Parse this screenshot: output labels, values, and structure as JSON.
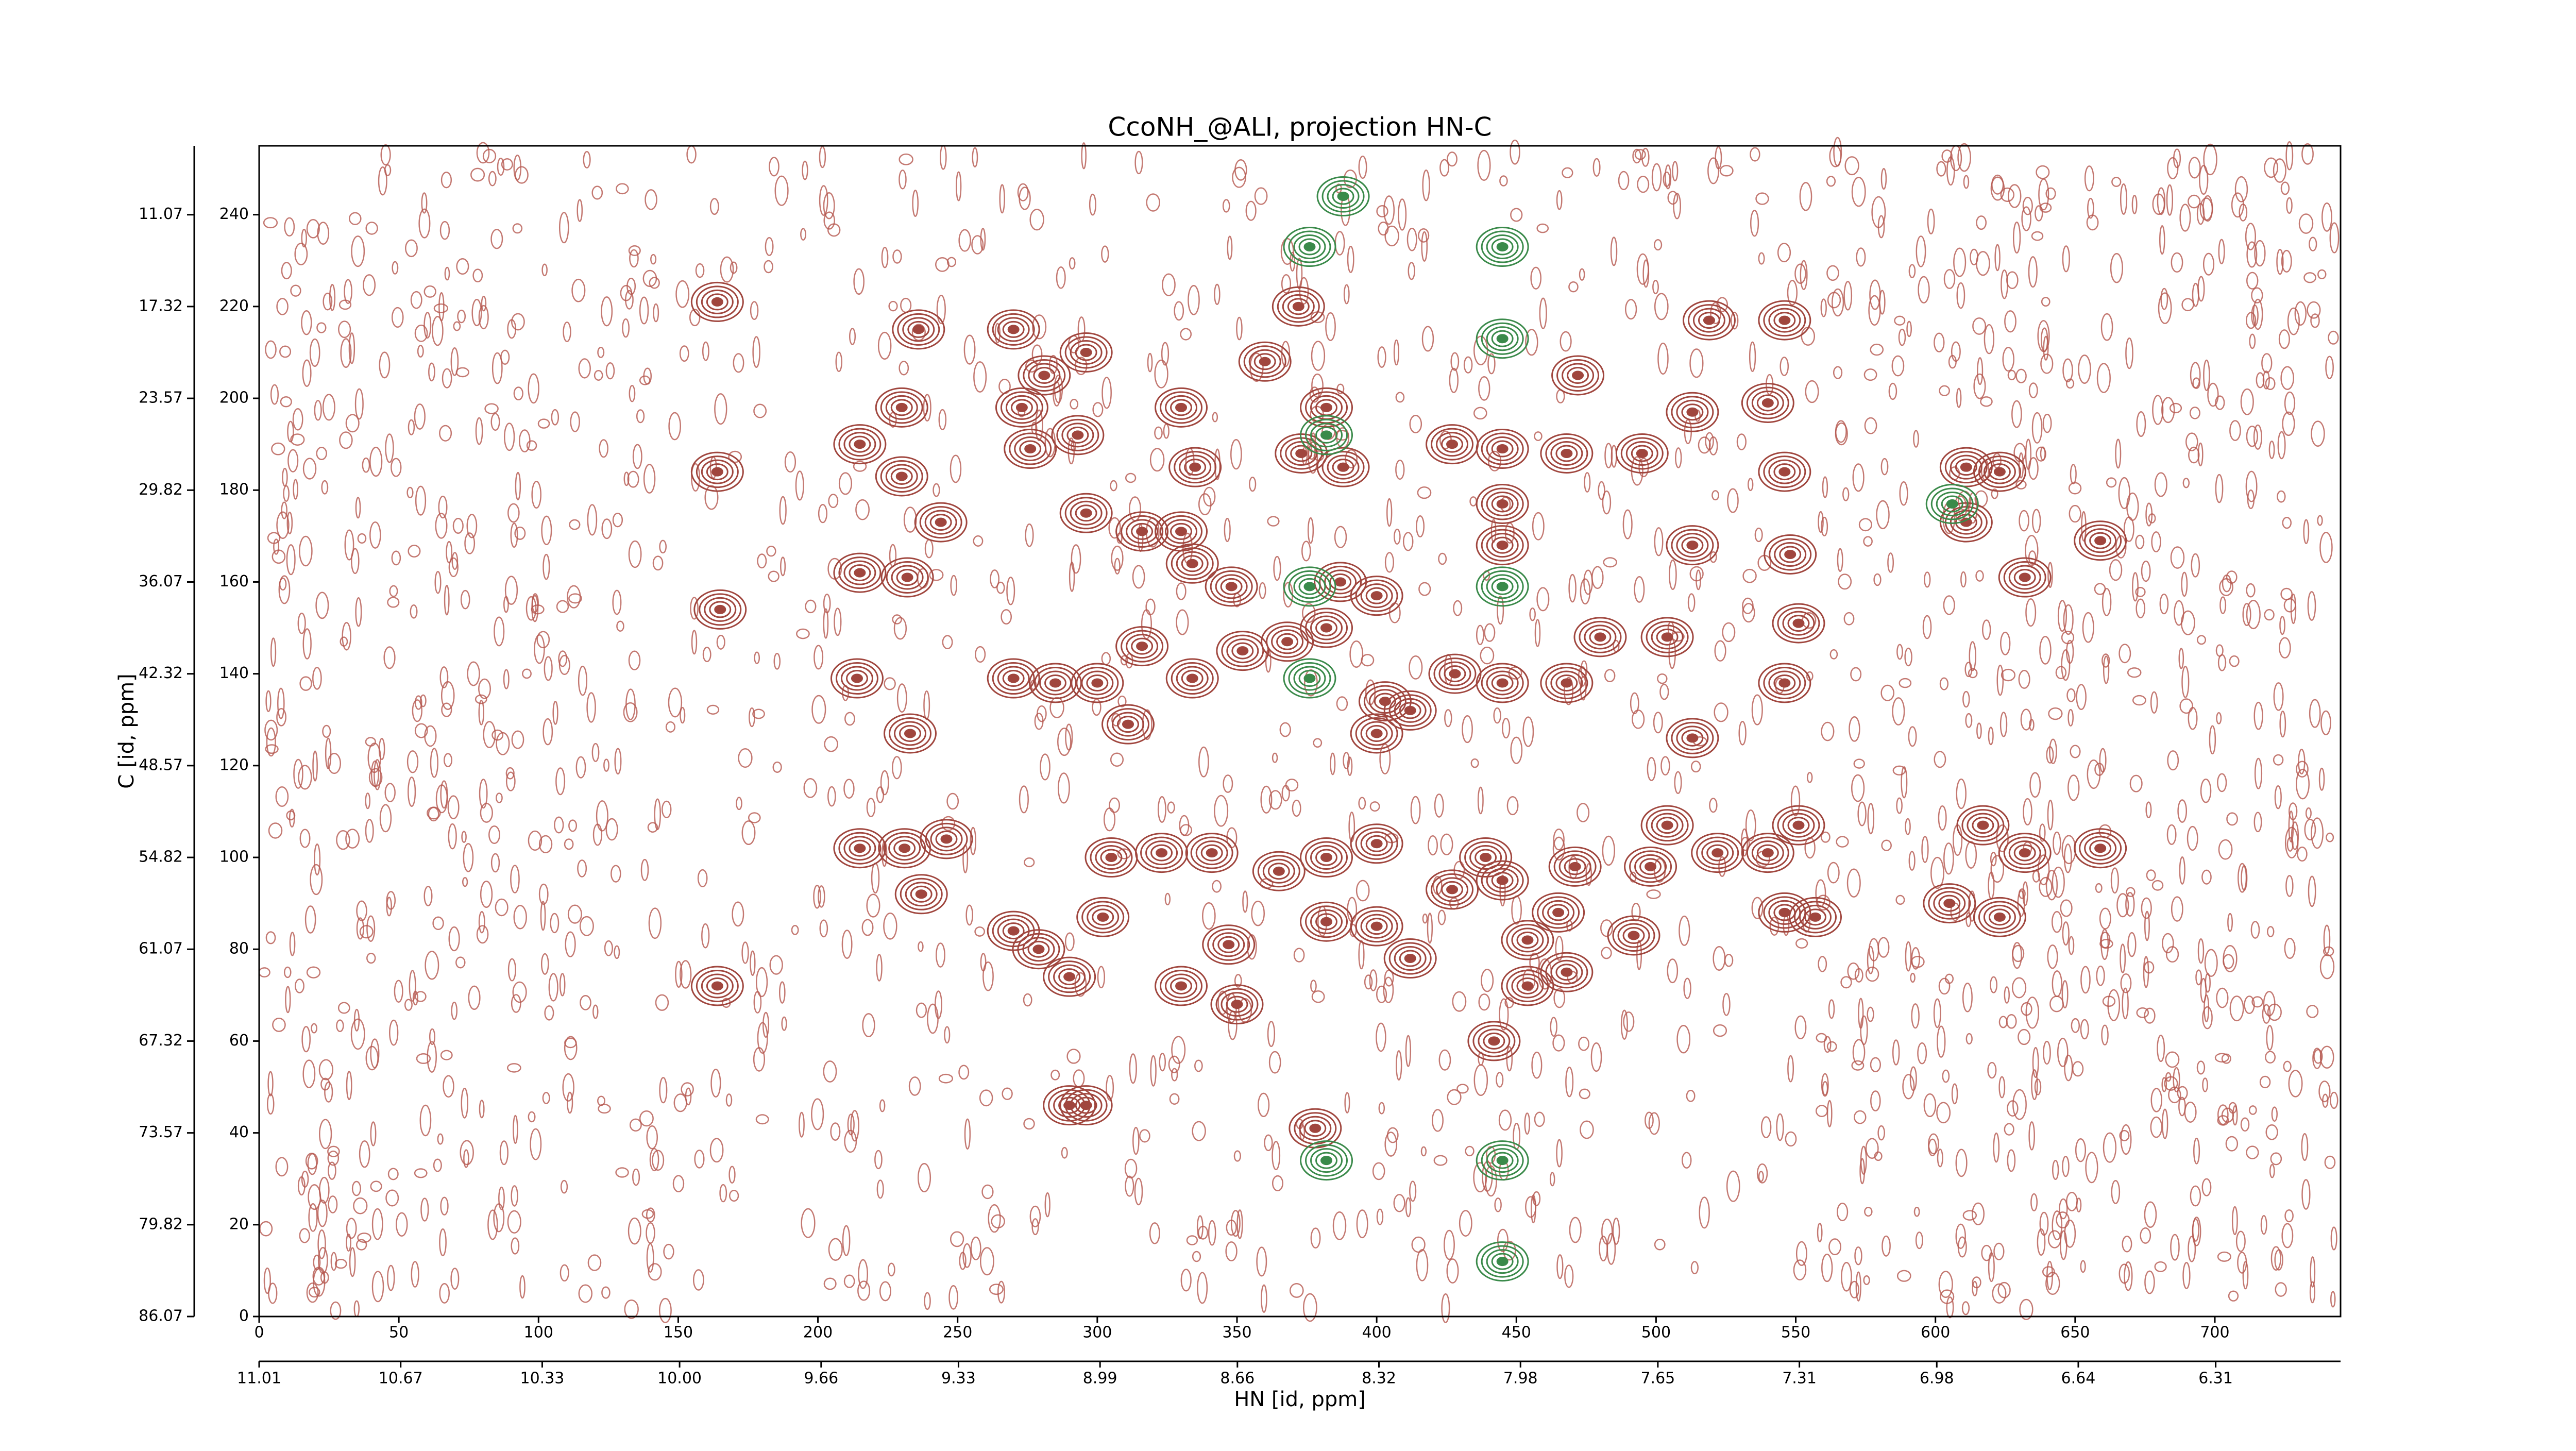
{
  "chart_data": {
    "type": "contour",
    "title": "CcoNH_@ALI, projection HN-C",
    "xlabel": "HN [id, ppm]",
    "ylabel": "C [id, ppm]",
    "xlim": [
      0,
      745
    ],
    "xticks": [
      0,
      50,
      100,
      150,
      200,
      250,
      300,
      350,
      400,
      450,
      500,
      550,
      600,
      650,
      700
    ],
    "ylim": [
      0,
      255
    ],
    "yticks": [
      0,
      20,
      40,
      60,
      80,
      100,
      120,
      140,
      160,
      180,
      200,
      220,
      240
    ],
    "x2lim": [
      11.01,
      6.01
    ],
    "x2ticks": [
      11.01,
      10.67,
      10.33,
      {
        "value": 10,
        "label": "10.00"
      },
      9.66,
      9.33,
      8.99,
      8.66,
      8.32,
      7.98,
      7.65,
      7.31,
      6.98,
      6.64,
      6.31
    ],
    "y2lim": [
      86.07,
      6.38
    ],
    "y2ticks": [
      86.07,
      79.82,
      73.57,
      67.32,
      61.07,
      54.82,
      48.57,
      42.32,
      36.07,
      29.82,
      23.57,
      17.32,
      11.07
    ],
    "series": [
      {
        "color": "#a0463e",
        "x": [
          164,
          236,
          230,
          215,
          230,
          164,
          244,
          215,
          232,
          165,
          214,
          233,
          270,
          285,
          300,
          311,
          270,
          281,
          296,
          273,
          293,
          276,
          296,
          316,
          330,
          335,
          330,
          334,
          348,
          316,
          334,
          352,
          368,
          360,
          372,
          382,
          373,
          388,
          387,
          400,
          382,
          403,
          400,
          412,
          428,
          427,
          445,
          445,
          445,
          445,
          472,
          468,
          480,
          468,
          495,
          513,
          519,
          546,
          540,
          546,
          513,
          504,
          513,
          546,
          551,
          548,
          611,
          623,
          611,
          659,
          632,
          215,
          231,
          237,
          246,
          164,
          270,
          279,
          290,
          302,
          305,
          323,
          341,
          347,
          350,
          330,
          365,
          382,
          400,
          382,
          400,
          412,
          427,
          445,
          439,
          454,
          465,
          471,
          468,
          454,
          492,
          498,
          504,
          522,
          540,
          546,
          557,
          551,
          605,
          623,
          617,
          632,
          659,
          442,
          290,
          296,
          378
        ],
        "values": [
          221,
          215,
          198,
          190,
          183,
          184,
          173,
          162,
          161,
          154,
          139,
          127,
          139,
          138,
          138,
          129,
          215,
          205,
          210,
          198,
          192,
          189,
          175,
          171,
          198,
          185,
          171,
          164,
          159,
          146,
          139,
          145,
          147,
          208,
          220,
          198,
          188,
          185,
          160,
          157,
          150,
          134,
          127,
          132,
          140,
          190,
          189,
          177,
          168,
          138,
          205,
          188,
          148,
          138,
          188,
          197,
          217,
          217,
          199,
          184,
          168,
          148,
          126,
          138,
          151,
          166,
          173,
          184,
          185,
          169,
          161,
          102,
          102,
          92,
          104,
          72,
          84,
          80,
          74,
          87,
          100,
          101,
          101,
          81,
          68,
          72,
          97,
          100,
          103,
          86,
          85,
          78,
          93,
          95,
          100,
          82,
          88,
          98,
          75,
          72,
          83,
          98,
          107,
          101,
          101,
          88,
          87,
          107,
          90,
          87,
          107,
          101,
          102,
          60,
          46,
          46,
          41
        ]
      },
      {
        "color": "#3a8a4a",
        "x": [
          388,
          376,
          445,
          445,
          382,
          376,
          445,
          382,
          445,
          445,
          376,
          606
        ],
        "values": [
          244,
          233,
          233,
          213,
          192,
          159,
          159,
          34,
          34,
          12,
          139,
          177
        ]
      }
    ]
  }
}
